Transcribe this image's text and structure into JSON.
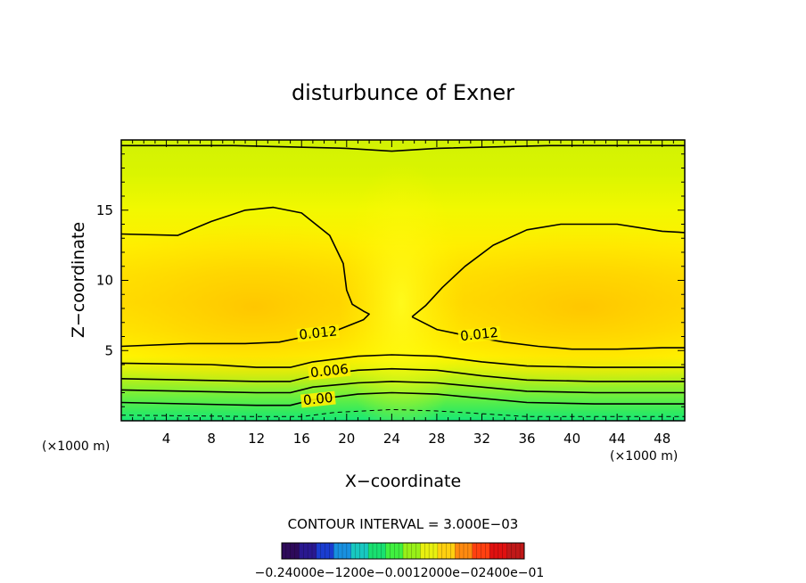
{
  "chart_data": {
    "type": "heatmap",
    "title": "disturbunce of Exner",
    "xlabel": "X−coordinate",
    "ylabel": "Z−coordinate",
    "x_unit": "(×1000 m)",
    "z_unit": "(×1000 m)",
    "xlim": [
      0,
      50
    ],
    "zlim": [
      0,
      20
    ],
    "x_ticks": [
      4,
      8,
      12,
      16,
      20,
      24,
      28,
      32,
      36,
      40,
      44,
      48
    ],
    "x_tick_labels": [
      "4",
      "8",
      "12",
      "16",
      "20",
      "24",
      "28",
      "32",
      "36",
      "40",
      "44",
      "48"
    ],
    "z_ticks": [
      5,
      10,
      15
    ],
    "z_tick_labels": [
      "5",
      "10",
      "15"
    ],
    "contour_interval_text": "CONTOUR INTERVAL = 3.000E−03",
    "contour_interval": 0.003,
    "contour_labels": [
      {
        "text": "0.012",
        "x": 17.5,
        "z": 6.0
      },
      {
        "text": "0.012",
        "x": 31.8,
        "z": 5.9
      },
      {
        "text": "0.006",
        "x": 18.5,
        "z": 3.3
      },
      {
        "text": "0.00",
        "x": 17.5,
        "z": 1.3
      }
    ],
    "contours": [
      {
        "level": 0.012,
        "points": [
          [
            0,
            13.3
          ],
          [
            5,
            13.2
          ],
          [
            8,
            14.2
          ],
          [
            11,
            15.0
          ],
          [
            13.5,
            15.2
          ],
          [
            16,
            14.8
          ],
          [
            18.5,
            13.2
          ],
          [
            19.7,
            11.2
          ],
          [
            20,
            9.3
          ],
          [
            20.5,
            8.3
          ],
          [
            21.5,
            7.8
          ],
          [
            22,
            7.6
          ],
          [
            21.5,
            7.2
          ],
          [
            19,
            6.4
          ],
          [
            17,
            6.1
          ],
          [
            14,
            5.6
          ],
          [
            11,
            5.5
          ],
          [
            6,
            5.5
          ],
          [
            0,
            5.3
          ]
        ]
      },
      {
        "level": 0.012,
        "points": [
          [
            25.8,
            7.4
          ],
          [
            27,
            8.2
          ],
          [
            28.5,
            9.5
          ],
          [
            30.5,
            11
          ],
          [
            33,
            12.5
          ],
          [
            36,
            13.6
          ],
          [
            39,
            14
          ],
          [
            44,
            14
          ],
          [
            48,
            13.5
          ],
          [
            50,
            13.4
          ]
        ]
      },
      {
        "level": 0.012,
        "points": [
          [
            25.8,
            7.4
          ],
          [
            28,
            6.5
          ],
          [
            31,
            6.0
          ],
          [
            34,
            5.6
          ],
          [
            37,
            5.3
          ],
          [
            40,
            5.1
          ],
          [
            44,
            5.1
          ],
          [
            48,
            5.2
          ],
          [
            50,
            5.2
          ]
        ]
      },
      {
        "level": 0.009,
        "points": [
          [
            0,
            4.1
          ],
          [
            8,
            4.0
          ],
          [
            12,
            3.8
          ],
          [
            15,
            3.8
          ],
          [
            17,
            4.2
          ],
          [
            21,
            4.6
          ],
          [
            24,
            4.7
          ],
          [
            28,
            4.6
          ],
          [
            32,
            4.2
          ],
          [
            36,
            3.9
          ],
          [
            42,
            3.8
          ],
          [
            50,
            3.8
          ]
        ]
      },
      {
        "level": 0.006,
        "points": [
          [
            0,
            3.0
          ],
          [
            12,
            2.8
          ],
          [
            15,
            2.8
          ],
          [
            17,
            3.2
          ],
          [
            21,
            3.6
          ],
          [
            24,
            3.7
          ],
          [
            28,
            3.6
          ],
          [
            32,
            3.2
          ],
          [
            36,
            2.9
          ],
          [
            42,
            2.8
          ],
          [
            50,
            2.8
          ]
        ]
      },
      {
        "level": 0.003,
        "points": [
          [
            0,
            2.2
          ],
          [
            12,
            2.0
          ],
          [
            15,
            2.0
          ],
          [
            17,
            2.4
          ],
          [
            21,
            2.7
          ],
          [
            24,
            2.8
          ],
          [
            28,
            2.7
          ],
          [
            32,
            2.4
          ],
          [
            36,
            2.1
          ],
          [
            42,
            2.0
          ],
          [
            50,
            2.0
          ]
        ]
      },
      {
        "level": 0.0,
        "points": [
          [
            0,
            1.3
          ],
          [
            12,
            1.1
          ],
          [
            15,
            1.1
          ],
          [
            17,
            1.5
          ],
          [
            21,
            1.9
          ],
          [
            24,
            2.0
          ],
          [
            28,
            1.9
          ],
          [
            32,
            1.6
          ],
          [
            36,
            1.3
          ],
          [
            42,
            1.2
          ],
          [
            50,
            1.2
          ]
        ]
      },
      {
        "level": -0.003,
        "dashed": true,
        "points": [
          [
            0,
            0.4
          ],
          [
            12,
            0.3
          ],
          [
            16,
            0.3
          ],
          [
            19,
            0.6
          ],
          [
            24,
            0.8
          ],
          [
            28,
            0.7
          ],
          [
            32,
            0.5
          ],
          [
            36,
            0.3
          ],
          [
            44,
            0.3
          ],
          [
            50,
            0.3
          ]
        ]
      },
      {
        "level": 0.012,
        "points": [
          [
            0,
            19.6
          ],
          [
            10,
            19.6
          ],
          [
            20,
            19.4
          ],
          [
            24,
            19.2
          ],
          [
            28,
            19.4
          ],
          [
            38,
            19.6
          ],
          [
            50,
            19.6
          ]
        ]
      }
    ],
    "colorbar": {
      "colors": [
        "#2e0a5a",
        "#2a1890",
        "#1a3cd0",
        "#1890e0",
        "#18c8c0",
        "#18e070",
        "#40f040",
        "#98f018",
        "#e8f010",
        "#ffd010",
        "#ff8a10",
        "#ff4010",
        "#e01010",
        "#c01818"
      ],
      "tick_labels_text": "−0.24000e−1200e−0.0012000e−02400e−01"
    }
  }
}
